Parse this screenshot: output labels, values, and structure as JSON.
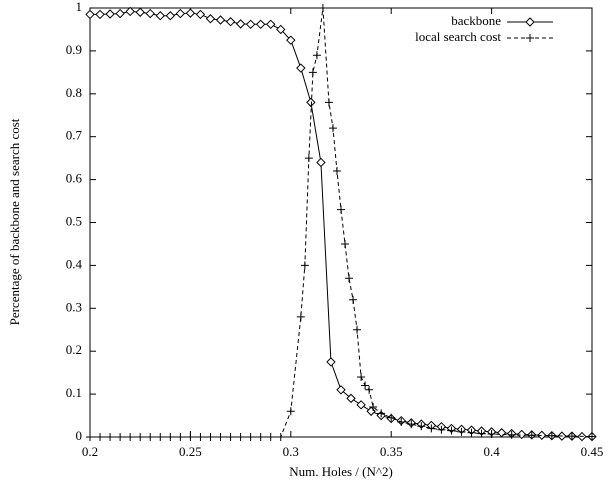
{
  "chart_data": {
    "type": "line",
    "xlabel": "Num. Holes / (N^2)",
    "ylabel": "Percentage of backbone and search cost",
    "xlim": [
      0.2,
      0.45
    ],
    "xticks": [
      0.2,
      0.25,
      0.3,
      0.35,
      0.4,
      0.45
    ],
    "ylim": [
      0,
      1
    ],
    "yticks": [
      0,
      0.1,
      0.2,
      0.3,
      0.4,
      0.5,
      0.6,
      0.7,
      0.8,
      0.9,
      1
    ],
    "grid": false,
    "legend": "top-right",
    "series": [
      {
        "name": "backbone",
        "color": "#000000",
        "marker": "diamond",
        "linestyle": "solid",
        "x": [
          0.2,
          0.205,
          0.21,
          0.215,
          0.22,
          0.225,
          0.23,
          0.235,
          0.24,
          0.245,
          0.25,
          0.255,
          0.26,
          0.265,
          0.27,
          0.275,
          0.28,
          0.285,
          0.29,
          0.295,
          0.3,
          0.305,
          0.31,
          0.315,
          0.32,
          0.325,
          0.33,
          0.335,
          0.34,
          0.345,
          0.35,
          0.355,
          0.36,
          0.365,
          0.37,
          0.375,
          0.38,
          0.385,
          0.39,
          0.395,
          0.4,
          0.405,
          0.41,
          0.415,
          0.42,
          0.425,
          0.43,
          0.435,
          0.44,
          0.445,
          0.45
        ],
        "values": [
          0.985,
          0.985,
          0.986,
          0.987,
          0.992,
          0.99,
          0.987,
          0.982,
          0.982,
          0.987,
          0.988,
          0.985,
          0.975,
          0.972,
          0.968,
          0.963,
          0.962,
          0.962,
          0.962,
          0.95,
          0.925,
          0.86,
          0.78,
          0.64,
          0.175,
          0.11,
          0.09,
          0.075,
          0.06,
          0.05,
          0.043,
          0.038,
          0.033,
          0.03,
          0.027,
          0.024,
          0.02,
          0.018,
          0.016,
          0.014,
          0.012,
          0.01,
          0.008,
          0.006,
          0.005,
          0.004,
          0.003,
          0.002,
          0.002,
          0.001,
          0.001
        ]
      },
      {
        "name": "local search cost",
        "color": "#000000",
        "marker": "plus",
        "linestyle": "dashed",
        "x": [
          0.2,
          0.205,
          0.21,
          0.215,
          0.22,
          0.225,
          0.23,
          0.235,
          0.24,
          0.245,
          0.25,
          0.255,
          0.26,
          0.265,
          0.27,
          0.275,
          0.28,
          0.285,
          0.29,
          0.295,
          0.3,
          0.305,
          0.307,
          0.309,
          0.311,
          0.313,
          0.316,
          0.319,
          0.321,
          0.323,
          0.325,
          0.327,
          0.329,
          0.331,
          0.333,
          0.335,
          0.337,
          0.339,
          0.341,
          0.345,
          0.35,
          0.355,
          0.36,
          0.365,
          0.37,
          0.375,
          0.38,
          0.385,
          0.39,
          0.395,
          0.4,
          0.41,
          0.42,
          0.43,
          0.44,
          0.45
        ],
        "values": [
          0,
          0,
          0,
          0,
          0,
          0,
          0,
          0,
          0,
          0,
          0,
          0,
          0,
          0,
          0,
          0,
          0,
          0,
          0,
          0,
          0.06,
          0.28,
          0.4,
          0.65,
          0.85,
          0.89,
          1,
          0.78,
          0.72,
          0.62,
          0.53,
          0.45,
          0.37,
          0.32,
          0.25,
          0.14,
          0.12,
          0.11,
          0.07,
          0.055,
          0.045,
          0.035,
          0.03,
          0.025,
          0.02,
          0.017,
          0.015,
          0.012,
          0.01,
          0.008,
          0.007,
          0.005,
          0.004,
          0.003,
          0.002,
          0.001
        ]
      }
    ]
  }
}
